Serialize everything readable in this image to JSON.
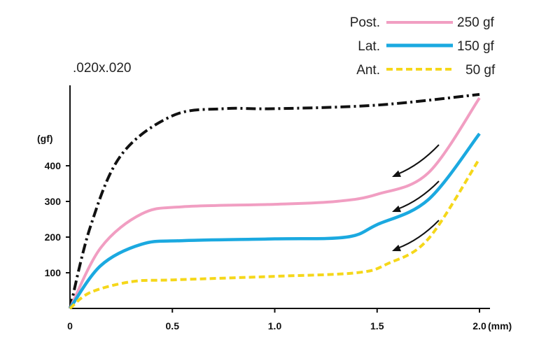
{
  "chart_data": {
    "type": "line",
    "annotation": ".020x.020",
    "ylabel": "(gf)",
    "xunit": "(mm)",
    "xlim": [
      0,
      2.0
    ],
    "ylim": [
      0,
      600
    ],
    "xticks": [
      "0",
      "0.5",
      "1.0",
      "1.5",
      "2.0"
    ],
    "xtick_values": [
      0,
      0.5,
      1.0,
      1.5,
      2.0
    ],
    "yticks": [
      "100",
      "200",
      "300",
      "400"
    ],
    "ytick_values": [
      100,
      200,
      300,
      400
    ],
    "legend": [
      {
        "label": "Post.",
        "value": "250 gf",
        "color": "#f19ec2",
        "dash": "solid"
      },
      {
        "label": "Lat.",
        "value": "150 gf",
        "color": "#1ba9e0",
        "dash": "solid"
      },
      {
        "label": "Ant.",
        "value": "50 gf",
        "color": "#f5d71a",
        "dash": "dashed"
      }
    ],
    "series": [
      {
        "color": "#111111",
        "dash": "dashdot",
        "points": [
          [
            0,
            0
          ],
          [
            0.1,
            230
          ],
          [
            0.25,
            430
          ],
          [
            0.5,
            540
          ],
          [
            0.75,
            560
          ],
          [
            1.0,
            560
          ],
          [
            1.5,
            570
          ],
          [
            2.0,
            600
          ]
        ]
      },
      {
        "color": "#f19ec2",
        "dash": "solid",
        "points": [
          [
            0,
            0
          ],
          [
            0.15,
            170
          ],
          [
            0.35,
            265
          ],
          [
            0.55,
            285
          ],
          [
            1.0,
            292
          ],
          [
            1.3,
            300
          ],
          [
            1.5,
            320
          ],
          [
            1.75,
            380
          ],
          [
            2.0,
            590
          ]
        ]
      },
      {
        "color": "#1ba9e0",
        "dash": "solid",
        "points": [
          [
            0,
            0
          ],
          [
            0.15,
            120
          ],
          [
            0.35,
            180
          ],
          [
            0.55,
            190
          ],
          [
            1.0,
            195
          ],
          [
            1.35,
            200
          ],
          [
            1.5,
            235
          ],
          [
            1.75,
            305
          ],
          [
            2.0,
            490
          ]
        ]
      },
      {
        "color": "#f5d71a",
        "dash": "dashed",
        "points": [
          [
            0,
            0
          ],
          [
            0.1,
            45
          ],
          [
            0.3,
            75
          ],
          [
            0.5,
            80
          ],
          [
            1.0,
            90
          ],
          [
            1.4,
            100
          ],
          [
            1.55,
            125
          ],
          [
            1.75,
            195
          ],
          [
            2.0,
            420
          ]
        ]
      }
    ],
    "arrows": 3
  }
}
